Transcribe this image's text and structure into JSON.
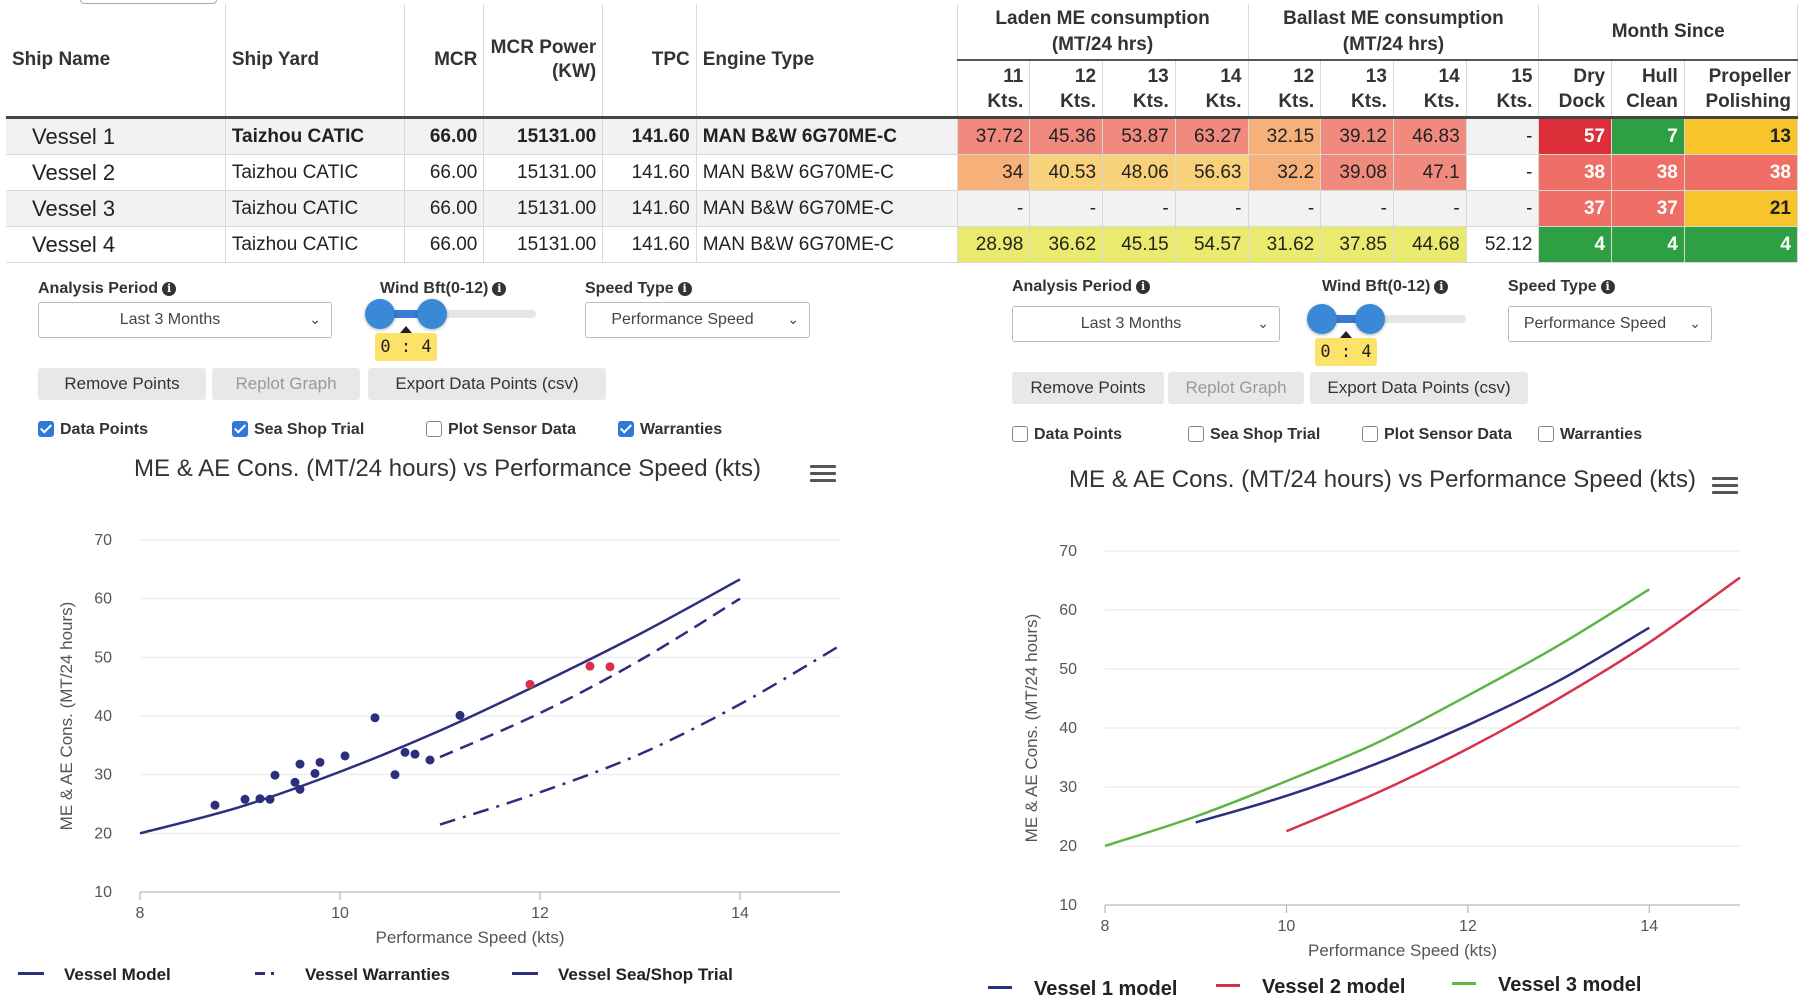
{
  "table": {
    "headers": {
      "ship_name": "Ship Name",
      "ship_yard": "Ship Yard",
      "mcr": "MCR",
      "mcr_power": "MCR Power (KW)",
      "tpc": "TPC",
      "engine_type": "Engine Type",
      "laden_group": "Laden ME consumption (MT/24 hrs)",
      "ballast_group": "Ballast ME consumption (MT/24 hrs)",
      "month_group": "Month Since",
      "laden_cols": [
        "11 Kts.",
        "12 Kts.",
        "13 Kts.",
        "14 Kts."
      ],
      "ballast_cols": [
        "12 Kts.",
        "13 Kts.",
        "14 Kts.",
        "15 Kts."
      ],
      "month_cols": [
        "Dry Dock",
        "Hull Clean",
        "Propeller Polishing"
      ]
    },
    "rows": [
      {
        "name": "Vessel 1",
        "yard": "Taizhou CATIC",
        "mcr": "66.00",
        "power": "15131.00",
        "tpc": "141.60",
        "engine": "MAN B&W 6G70ME-C",
        "laden": [
          "37.72",
          "45.36",
          "53.87",
          "63.27"
        ],
        "ballast": [
          "32.15",
          "39.12",
          "46.83",
          "-"
        ],
        "month": [
          "57",
          "7",
          "13"
        ],
        "laden_colors": [
          "#f08a7e",
          "#f08a7e",
          "#f08a7e",
          "#f08a7e"
        ],
        "ballast_colors": [
          "#f6b07a",
          "#f08a7e",
          "#f08a7e",
          "#f2f2f2"
        ],
        "month_colors": [
          "#dc2f3a",
          "#2ea043",
          "#f7c52b"
        ]
      },
      {
        "name": "Vessel 2",
        "yard": "Taizhou CATIC",
        "mcr": "66.00",
        "power": "15131.00",
        "tpc": "141.60",
        "engine": "MAN B&W 6G70ME-C",
        "laden": [
          "34",
          "40.53",
          "48.06",
          "56.63"
        ],
        "ballast": [
          "32.2",
          "39.08",
          "47.1",
          "-"
        ],
        "month": [
          "38",
          "38",
          "38"
        ],
        "laden_colors": [
          "#f6b07a",
          "#f8d27a",
          "#f8d27a",
          "#f8d27a"
        ],
        "ballast_colors": [
          "#f6b07a",
          "#f08a7e",
          "#f08a7e",
          "#ffffff"
        ],
        "month_colors": [
          "#ef6e65",
          "#ef6e65",
          "#ef6e65"
        ]
      },
      {
        "name": "Vessel 3",
        "yard": "Taizhou CATIC",
        "mcr": "66.00",
        "power": "15131.00",
        "tpc": "141.60",
        "engine": "MAN B&W 6G70ME-C",
        "laden": [
          "-",
          "-",
          "-",
          "-"
        ],
        "ballast": [
          "-",
          "-",
          "-",
          "-"
        ],
        "month": [
          "37",
          "37",
          "21"
        ],
        "laden_colors": [
          "#f2f2f2",
          "#f2f2f2",
          "#f2f2f2",
          "#f2f2f2"
        ],
        "ballast_colors": [
          "#f2f2f2",
          "#f2f2f2",
          "#f2f2f2",
          "#f2f2f2"
        ],
        "month_colors": [
          "#ef6e65",
          "#ef6e65",
          "#f7c52b"
        ]
      },
      {
        "name": "Vessel 4",
        "yard": "Taizhou CATIC",
        "mcr": "66.00",
        "power": "15131.00",
        "tpc": "141.60",
        "engine": "MAN B&W 6G70ME-C",
        "laden": [
          "28.98",
          "36.62",
          "45.15",
          "54.57"
        ],
        "ballast": [
          "31.62",
          "37.85",
          "44.68",
          "52.12"
        ],
        "month": [
          "4",
          "4",
          "4"
        ],
        "laden_colors": [
          "#eaea6e",
          "#eaea6e",
          "#eaea6e",
          "#eaea6e"
        ],
        "ballast_colors": [
          "#eaea6e",
          "#eaea6e",
          "#eaea6e",
          "#ffffff"
        ],
        "month_colors": [
          "#2ea043",
          "#2ea043",
          "#2ea043"
        ]
      }
    ]
  },
  "left": {
    "analysis_label": "Analysis Period",
    "analysis_value": "Last 3 Months",
    "wind_label": "Wind Bft(0-12)",
    "wind_value": "0 : 4",
    "speed_label": "Speed Type",
    "speed_value": "Performance Speed",
    "buttons": [
      "Remove Points",
      "Replot Graph",
      "Export Data Points (csv)"
    ],
    "checks": [
      {
        "label": "Data Points",
        "checked": true
      },
      {
        "label": "Sea Shop Trial",
        "checked": true
      },
      {
        "label": "Plot Sensor Data",
        "checked": false
      },
      {
        "label": "Warranties",
        "checked": true
      }
    ],
    "legend": [
      "Vessel Model",
      "Vessel Warranties",
      "Vessel Sea/Shop Trial"
    ]
  },
  "right": {
    "analysis_label": "Analysis Period",
    "analysis_value": "Last 3 Months",
    "wind_label": "Wind Bft(0-12)",
    "wind_value": "0 : 4",
    "speed_label": "Speed Type",
    "speed_value": "Performance Speed",
    "buttons": [
      "Remove Points",
      "Replot Graph",
      "Export Data Points (csv)"
    ],
    "checks": [
      {
        "label": "Data Points",
        "checked": false
      },
      {
        "label": "Sea Shop Trial",
        "checked": false
      },
      {
        "label": "Plot Sensor Data",
        "checked": false
      },
      {
        "label": "Warranties",
        "checked": false
      }
    ],
    "legend": [
      "Vessel 1 model",
      "Vessel 2 model",
      "Vessel 3 model"
    ]
  },
  "colors": {
    "navy": "#2b2f7e",
    "red": "#d8324a",
    "green": "#5bb544",
    "point_red": "#d8324a"
  },
  "chart_data": [
    {
      "type": "line",
      "title": "ME & AE Cons. (MT/24 hours) vs Performance Speed (kts)",
      "xlabel": "Performance Speed (kts)",
      "ylabel": "ME & AE Cons. (MT/24 hours)",
      "xlim": [
        8,
        15
      ],
      "ylim": [
        10,
        70
      ],
      "xticks": [
        8,
        10,
        12,
        14
      ],
      "yticks": [
        10,
        20,
        30,
        40,
        50,
        60,
        70
      ],
      "grid": true,
      "legend_position": "bottom",
      "series": [
        {
          "name": "Vessel Model",
          "style": "solid",
          "color": "#2b2f7e",
          "x": [
            8,
            9,
            10,
            11,
            12,
            13,
            14
          ],
          "y": [
            20,
            24.5,
            30.5,
            37.5,
            45.5,
            54,
            63.3
          ]
        },
        {
          "name": "Vessel Warranties",
          "style": "dash",
          "color": "#2b2f7e",
          "x": [
            11,
            12,
            13,
            14
          ],
          "y": [
            33,
            40.5,
            49.5,
            60
          ]
        },
        {
          "name": "Vessel Sea/Shop Trial",
          "style": "dashdot",
          "color": "#2b2f7e",
          "x": [
            11,
            12,
            13,
            14,
            15
          ],
          "y": [
            21.5,
            27,
            33.5,
            42,
            52
          ]
        }
      ],
      "points": [
        {
          "x": 8.75,
          "y": 24.8,
          "c": "navy"
        },
        {
          "x": 9.05,
          "y": 25.8,
          "c": "navy"
        },
        {
          "x": 9.2,
          "y": 25.9,
          "c": "navy"
        },
        {
          "x": 9.3,
          "y": 25.8,
          "c": "navy"
        },
        {
          "x": 9.35,
          "y": 29.9,
          "c": "navy"
        },
        {
          "x": 9.55,
          "y": 28.7,
          "c": "navy"
        },
        {
          "x": 9.6,
          "y": 27.5,
          "c": "navy"
        },
        {
          "x": 9.6,
          "y": 31.8,
          "c": "navy"
        },
        {
          "x": 9.75,
          "y": 30.2,
          "c": "navy"
        },
        {
          "x": 9.8,
          "y": 32.1,
          "c": "navy"
        },
        {
          "x": 10.05,
          "y": 33.2,
          "c": "navy"
        },
        {
          "x": 10.35,
          "y": 39.7,
          "c": "navy"
        },
        {
          "x": 10.55,
          "y": 30.0,
          "c": "navy"
        },
        {
          "x": 10.65,
          "y": 33.8,
          "c": "navy"
        },
        {
          "x": 10.75,
          "y": 33.5,
          "c": "navy"
        },
        {
          "x": 10.9,
          "y": 32.5,
          "c": "navy"
        },
        {
          "x": 11.2,
          "y": 40.1,
          "c": "navy"
        },
        {
          "x": 11.9,
          "y": 45.4,
          "c": "red"
        },
        {
          "x": 12.5,
          "y": 48.5,
          "c": "red"
        },
        {
          "x": 12.7,
          "y": 48.4,
          "c": "red"
        }
      ]
    },
    {
      "type": "line",
      "title": "ME & AE Cons. (MT/24 hours) vs Performance Speed (kts)",
      "xlabel": "Performance Speed (kts)",
      "ylabel": "ME & AE Cons. (MT/24 hours)",
      "xlim": [
        8,
        15
      ],
      "ylim": [
        10,
        70
      ],
      "xticks": [
        8,
        10,
        12,
        14
      ],
      "yticks": [
        10,
        20,
        30,
        40,
        50,
        60,
        70
      ],
      "grid": true,
      "legend_position": "bottom",
      "series": [
        {
          "name": "Vessel 1 model",
          "color": "#2b2f7e",
          "x": [
            9,
            10,
            11,
            12,
            13,
            14
          ],
          "y": [
            24,
            28.5,
            34,
            40.5,
            48,
            57
          ]
        },
        {
          "name": "Vessel 2 model",
          "color": "#d8324a",
          "x": [
            10,
            11,
            12,
            13,
            14,
            15
          ],
          "y": [
            22.5,
            29,
            36.5,
            45,
            54.5,
            65.5
          ]
        },
        {
          "name": "Vessel 3 model",
          "color": "#5bb544",
          "x": [
            8,
            9,
            10,
            11,
            12,
            13,
            14
          ],
          "y": [
            20,
            25,
            31,
            37.5,
            45.5,
            54,
            63.5
          ]
        }
      ]
    }
  ]
}
